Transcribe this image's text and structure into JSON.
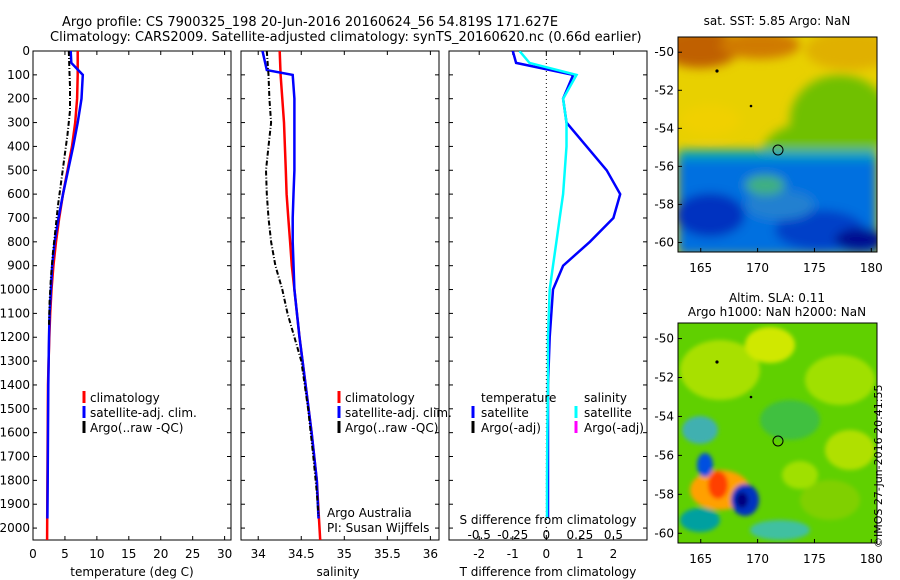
{
  "header": {
    "line1": "Argo profile: CS 7900325_198 20-Jun-2016 20160624_56 54.819S 171.627E",
    "line2": "Climatology: CARS2009. Satellite-adjusted climatology: synTS_20160620.nc (0.66d earlier)"
  },
  "legend": {
    "climatology": "climatology",
    "satellite_adj": "satellite-adj. clim.",
    "argo_raw": "Argo(..raw -QC)",
    "temperature_hdr": "temperature",
    "salinity_hdr": "salinity",
    "satellite": "satellite",
    "argo_adj": "Argo(-adj)"
  },
  "annotation": {
    "argo_australia": "Argo Australia",
    "pi": "PI: Susan Wijffels"
  },
  "map_titles": {
    "sst": "sat. SST: 5.85 Argo: NaN",
    "sla_line1": "Altim. SLA: 0.11",
    "sla_line2": "Argo h1000: NaN h2000: NaN"
  },
  "timestamp": "©IMOS 27-Jun-2016 20:41:55",
  "colors": {
    "climatology": "#ff0000",
    "satellite_adj": "#0000ff",
    "argo": "#000000",
    "salinity_diff": "#00ffff",
    "argo_adj_sal": "#ff00ff"
  },
  "chart_data": [
    {
      "type": "line",
      "name": "temperature profile",
      "xlabel": "temperature (deg C)",
      "xlim": [
        0,
        31
      ],
      "ylim": [
        2050,
        0
      ],
      "xticks": [
        0,
        5,
        10,
        15,
        20,
        25,
        30
      ],
      "yticks": [
        0,
        100,
        200,
        300,
        400,
        500,
        600,
        700,
        800,
        900,
        1000,
        1100,
        1200,
        1300,
        1400,
        1500,
        1600,
        1700,
        1800,
        1900,
        2000
      ],
      "series": [
        {
          "name": "climatology",
          "x": [
            7.0,
            7.0,
            6.9,
            6.6,
            6.1,
            5.4,
            4.7,
            4.1,
            3.6,
            3.2,
            2.9,
            2.7,
            2.55,
            2.45,
            2.35,
            2.3,
            2.25,
            2.2
          ],
          "y": [
            0,
            100,
            200,
            300,
            400,
            500,
            600,
            700,
            800,
            900,
            1000,
            1100,
            1200,
            1300,
            1400,
            1600,
            1800,
            2050
          ]
        },
        {
          "name": "satellite-adj. clim.",
          "x": [
            5.9,
            6.0,
            7.8,
            7.6,
            7.0,
            6.3,
            5.5,
            4.7,
            4.0,
            3.4,
            3.0,
            2.8,
            2.6,
            2.5,
            2.4,
            2.35,
            2.3,
            2.25
          ],
          "y": [
            0,
            50,
            100,
            200,
            300,
            400,
            500,
            600,
            700,
            800,
            900,
            1000,
            1100,
            1200,
            1400,
            1600,
            1800,
            1960
          ]
        },
        {
          "name": "Argo(..raw -QC)",
          "x": [
            5.6,
            5.7,
            5.8,
            5.8,
            5.4,
            4.9,
            4.4,
            3.9,
            3.5,
            3.1,
            2.8,
            2.6,
            2.5
          ],
          "y": [
            0,
            80,
            150,
            250,
            350,
            450,
            550,
            650,
            750,
            850,
            950,
            1050,
            1150
          ]
        }
      ]
    },
    {
      "type": "line",
      "name": "salinity profile",
      "xlabel": "salinity",
      "xlim": [
        33.8,
        36.1
      ],
      "ylim": [
        2050,
        0
      ],
      "xticks": [
        34,
        34.5,
        35,
        35.5,
        36
      ],
      "series": [
        {
          "name": "climatology",
          "x": [
            34.25,
            34.26,
            34.28,
            34.3,
            34.31,
            34.32,
            34.33,
            34.35,
            34.37,
            34.39,
            34.42,
            34.48,
            34.55,
            34.62,
            34.68,
            34.72
          ],
          "y": [
            0,
            100,
            200,
            300,
            400,
            500,
            600,
            700,
            800,
            900,
            1000,
            1200,
            1400,
            1600,
            1800,
            2050
          ]
        },
        {
          "name": "satellite-adj. clim.",
          "x": [
            34.05,
            34.1,
            34.4,
            34.42,
            34.42,
            34.42,
            34.42,
            34.41,
            34.4,
            34.4,
            34.42,
            34.48,
            34.55,
            34.62,
            34.68,
            34.7
          ],
          "y": [
            0,
            80,
            100,
            200,
            300,
            400,
            500,
            600,
            700,
            800,
            1000,
            1200,
            1400,
            1600,
            1800,
            1960
          ]
        },
        {
          "name": "Argo(..raw -QC)",
          "x": [
            34.1,
            34.12,
            34.13,
            34.15,
            34.12,
            34.09,
            34.1,
            34.12,
            34.15,
            34.2,
            34.28,
            34.34,
            34.42,
            34.5,
            34.58,
            34.64,
            34.68,
            34.7
          ],
          "y": [
            0,
            100,
            200,
            300,
            400,
            500,
            600,
            700,
            800,
            900,
            1000,
            1100,
            1200,
            1300,
            1500,
            1700,
            1850,
            1950
          ]
        }
      ]
    },
    {
      "type": "line",
      "name": "difference from climatology",
      "xlabel": "T difference from climatology",
      "xlabel_top": "S difference from climatology",
      "xlim": [
        -2.9,
        3.0
      ],
      "ylim": [
        2050,
        0
      ],
      "xticks": [
        -2,
        -1,
        0,
        1,
        2
      ],
      "xticks_top_labels": [
        "-0.5",
        "-0.25",
        "0",
        "0.25",
        "0.5"
      ],
      "series": [
        {
          "name": "temperature satellite",
          "x": [
            -1.0,
            -0.9,
            0.8,
            0.5,
            0.6,
            1.2,
            1.8,
            2.2,
            2.0,
            1.3,
            0.5,
            0.2,
            0.1,
            0.05,
            0.05,
            0.05,
            0.05
          ],
          "y": [
            0,
            50,
            100,
            200,
            300,
            400,
            500,
            600,
            700,
            800,
            900,
            1000,
            1200,
            1400,
            1600,
            1800,
            1960
          ]
        },
        {
          "name": "salinity satellite",
          "x": [
            -0.8,
            -0.5,
            0.9,
            0.5,
            0.6,
            0.6,
            0.55,
            0.5,
            0.4,
            0.3,
            0.2,
            0.1,
            0.05,
            0.05,
            0.03,
            0.02,
            0.02
          ],
          "y": [
            0,
            50,
            100,
            200,
            300,
            400,
            500,
            600,
            700,
            800,
            900,
            1000,
            1200,
            1400,
            1600,
            1800,
            1960
          ]
        }
      ]
    },
    {
      "type": "heatmap",
      "name": "sat SST map",
      "xlim": [
        163,
        180.5
      ],
      "ylim": [
        -60.5,
        -49.2
      ],
      "xticks": [
        165,
        170,
        175,
        180
      ],
      "yticks": [
        -50,
        -52,
        -54,
        -56,
        -58,
        -60
      ],
      "marker": {
        "lon": 171.6,
        "lat": -54.8
      }
    },
    {
      "type": "heatmap",
      "name": "altimetry SLA map",
      "xlim": [
        163,
        180.5
      ],
      "ylim": [
        -60.5,
        -49.2
      ],
      "xticks": [
        165,
        170,
        175,
        180
      ],
      "yticks": [
        -50,
        -52,
        -54,
        -56,
        -58,
        -60
      ],
      "marker": {
        "lon": 171.6,
        "lat": -54.8
      }
    }
  ]
}
